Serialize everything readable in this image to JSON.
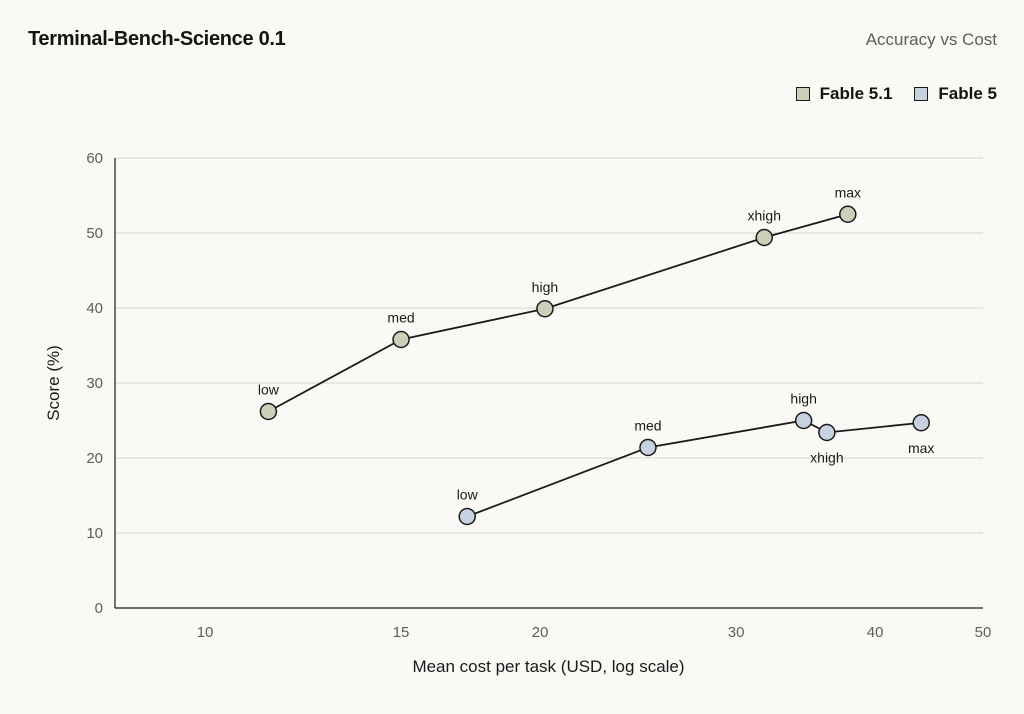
{
  "header": {
    "title": "Terminal-Bench-Science 0.1",
    "subtitle": "Accuracy vs Cost"
  },
  "legend": [
    {
      "name": "Fable 5.1",
      "color": "#c9d2b8"
    },
    {
      "name": "Fable 5",
      "color": "#c6d2df"
    }
  ],
  "chart_data": {
    "type": "line",
    "title": "Terminal-Bench-Science 0.1",
    "subtitle": "Accuracy vs Cost",
    "xlabel": "Mean cost per task (USD, log scale)",
    "ylabel": "Score (%)",
    "x_scale": "log",
    "xlim": [
      8.3,
      50
    ],
    "ylim": [
      0,
      60
    ],
    "x_ticks": [
      10,
      15,
      20,
      30,
      40,
      50
    ],
    "y_ticks": [
      0,
      10,
      20,
      30,
      40,
      50,
      60
    ],
    "grid": "horizontal",
    "legend_position": "top-right",
    "series": [
      {
        "name": "Fable 5.1",
        "color": "#c9d2b8",
        "points": [
          {
            "x": 11.4,
            "y": 26.2,
            "label": "low",
            "label_pos": "above"
          },
          {
            "x": 15.0,
            "y": 35.8,
            "label": "med",
            "label_pos": "above"
          },
          {
            "x": 20.2,
            "y": 39.9,
            "label": "high",
            "label_pos": "above"
          },
          {
            "x": 31.8,
            "y": 49.4,
            "label": "xhigh",
            "label_pos": "above"
          },
          {
            "x": 37.8,
            "y": 52.5,
            "label": "max",
            "label_pos": "above"
          }
        ]
      },
      {
        "name": "Fable 5",
        "color": "#c6d2df",
        "points": [
          {
            "x": 17.2,
            "y": 12.2,
            "label": "low",
            "label_pos": "above"
          },
          {
            "x": 25.0,
            "y": 21.4,
            "label": "med",
            "label_pos": "above"
          },
          {
            "x": 34.5,
            "y": 25.0,
            "label": "high",
            "label_pos": "above"
          },
          {
            "x": 36.2,
            "y": 23.4,
            "label": "xhigh",
            "label_pos": "below"
          },
          {
            "x": 44.0,
            "y": 24.7,
            "label": "max",
            "label_pos": "below"
          }
        ]
      }
    ]
  }
}
